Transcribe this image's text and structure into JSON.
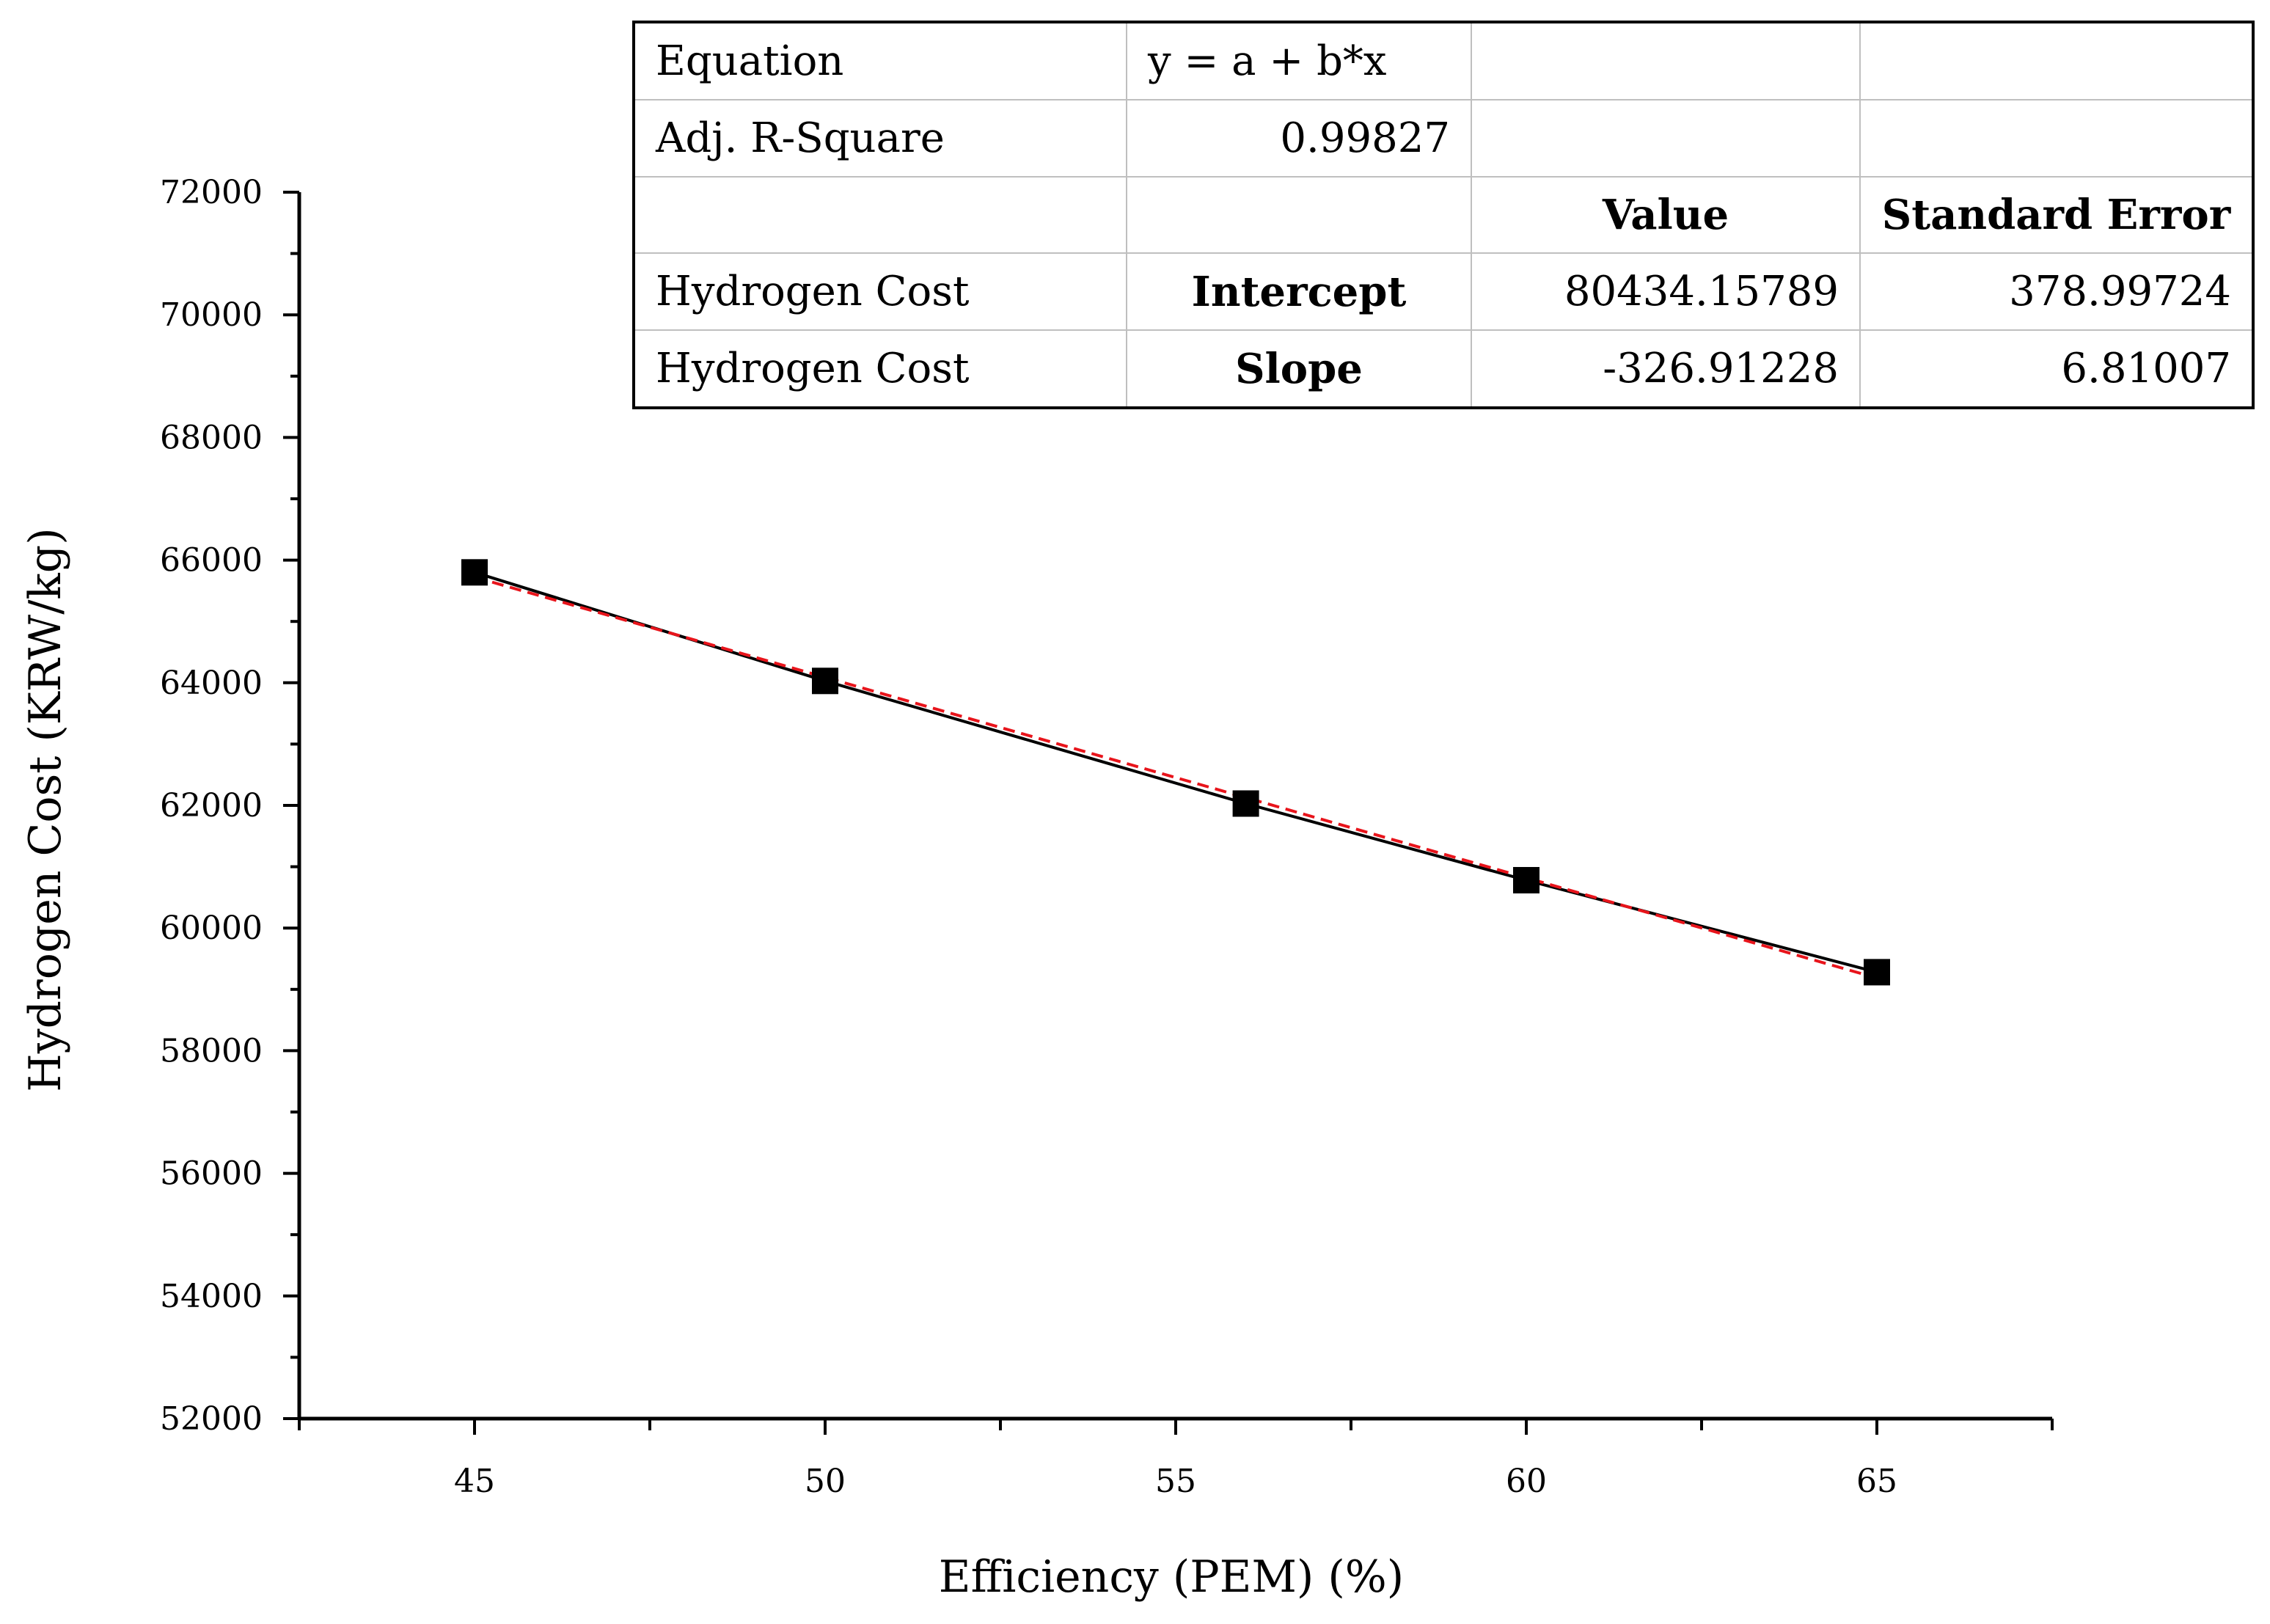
{
  "chart_data": {
    "type": "scatter",
    "xlabel": "Efficiency (PEM) (%)",
    "ylabel": "Hydrogen Cost (KRW/kg)",
    "xlim": [
      42.5,
      67.5
    ],
    "ylim": [
      52000,
      72000
    ],
    "x_ticks": [
      45,
      50,
      55,
      60,
      65
    ],
    "y_ticks": [
      52000,
      54000,
      56000,
      58000,
      60000,
      62000,
      64000,
      66000,
      68000,
      70000,
      72000
    ],
    "series": [
      {
        "name": "Hydrogen Cost",
        "marker": "square",
        "color": "#000000",
        "x": [
          45,
          50,
          56,
          60,
          65
        ],
        "y": [
          65800,
          64030,
          62030,
          60780,
          59280
        ]
      }
    ],
    "lines": [
      {
        "name": "Connecting line",
        "style": "solid",
        "color": "#000000",
        "x": [
          45,
          50,
          56,
          60,
          65
        ],
        "y": [
          65800,
          64030,
          62030,
          60780,
          59280
        ]
      },
      {
        "name": "Linear fit",
        "style": "dashed",
        "color": "#e8141b",
        "intercept": 80434.15789,
        "slope": -326.91228,
        "x_range": [
          45,
          65
        ]
      }
    ],
    "fit_table": {
      "rows": [
        [
          "Equation",
          "y = a + b*x",
          "",
          ""
        ],
        [
          "Adj. R-Square",
          "0.99827",
          "",
          ""
        ],
        [
          "",
          "",
          "Value",
          "Standard Error"
        ],
        [
          "Hydrogen Cost",
          "Intercept",
          "80434.15789",
          "378.99724"
        ],
        [
          "Hydrogen Cost",
          "Slope",
          "-326.91228",
          "6.81007"
        ]
      ]
    }
  }
}
